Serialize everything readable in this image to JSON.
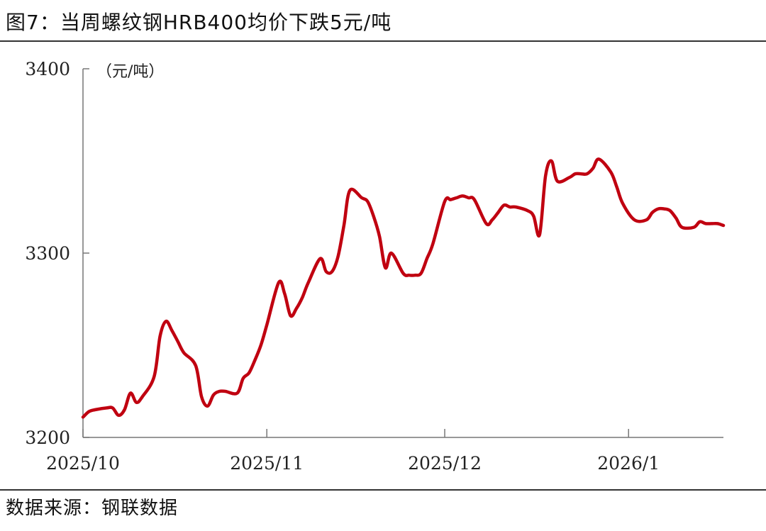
{
  "title": "图7：当周螺纹钢HRB400均价下跌5元/吨",
  "source": "数据来源：钢联数据",
  "chart_data": {
    "type": "line",
    "title": "图7：当周螺纹钢HRB400均价下跌5元/吨",
    "xlabel": "",
    "ylabel": "（元/吨）",
    "unit": "（元/吨）",
    "ylim": [
      3200,
      3400
    ],
    "yticks": [
      "3200",
      "3300",
      "3400"
    ],
    "xticks": [
      "2025/10",
      "2025/11",
      "2025/12",
      "2026/1"
    ],
    "xlim": [
      "2025-10-01",
      "2026-01-17"
    ],
    "grid": false,
    "color": "#c00010",
    "series": [
      {
        "name": "",
        "x": [
          "2025-10-01",
          "2025-10-02",
          "2025-10-03",
          "2025-10-05",
          "2025-10-06",
          "2025-10-07",
          "2025-10-08",
          "2025-10-09",
          "2025-10-10",
          "2025-10-11",
          "2025-10-13",
          "2025-10-14",
          "2025-10-15",
          "2025-10-16",
          "2025-10-17",
          "2025-10-18",
          "2025-10-20",
          "2025-10-21",
          "2025-10-22",
          "2025-10-23",
          "2025-10-24",
          "2025-10-25",
          "2025-10-27",
          "2025-10-28",
          "2025-10-29",
          "2025-10-30",
          "2025-10-31",
          "2025-11-01",
          "2025-11-03",
          "2025-11-04",
          "2025-11-05",
          "2025-11-06",
          "2025-11-07",
          "2025-11-08",
          "2025-11-10",
          "2025-11-11",
          "2025-11-12",
          "2025-11-13",
          "2025-11-14",
          "2025-11-15",
          "2025-11-17",
          "2025-11-18",
          "2025-11-19",
          "2025-11-20",
          "2025-11-21",
          "2025-11-22",
          "2025-11-24",
          "2025-11-25",
          "2025-11-26",
          "2025-11-27",
          "2025-11-28",
          "2025-11-29",
          "2025-12-01",
          "2025-12-02",
          "2025-12-03",
          "2025-12-04",
          "2025-12-05",
          "2025-12-06",
          "2025-12-08",
          "2025-12-09",
          "2025-12-10",
          "2025-12-11",
          "2025-12-12",
          "2025-12-13",
          "2025-12-15",
          "2025-12-16",
          "2025-12-17",
          "2025-12-18",
          "2025-12-19",
          "2025-12-20",
          "2025-12-22",
          "2025-12-23",
          "2025-12-24",
          "2025-12-25",
          "2025-12-26",
          "2025-12-27",
          "2025-12-29",
          "2025-12-30",
          "2025-12-31",
          "2026-01-02",
          "2026-01-04",
          "2026-01-05",
          "2026-01-06",
          "2026-01-07",
          "2026-01-08",
          "2026-01-09",
          "2026-01-10",
          "2026-01-12",
          "2026-01-13",
          "2026-01-14",
          "2026-01-15",
          "2026-01-16",
          "2026-01-17"
        ],
        "values": [
          3211,
          3214,
          3215,
          3216,
          3216,
          3212,
          3215,
          3224,
          3219,
          3222,
          3233,
          3255,
          3263,
          3258,
          3252,
          3246,
          3239,
          3222,
          3217,
          3223,
          3225,
          3225,
          3224,
          3232,
          3235,
          3242,
          3250,
          3261,
          3284,
          3278,
          3266,
          3270,
          3276,
          3284,
          3297,
          3290,
          3290,
          3298,
          3315,
          3334,
          3330,
          3328,
          3320,
          3309,
          3292,
          3300,
          3289,
          3288,
          3288,
          3289,
          3297,
          3305,
          3328,
          3329,
          3330,
          3331,
          3330,
          3329,
          3316,
          3318,
          3322,
          3326,
          3325,
          3325,
          3323,
          3320,
          3310,
          3342,
          3350,
          3339,
          3341,
          3343,
          3343,
          3343,
          3346,
          3351,
          3344,
          3336,
          3327,
          3318,
          3318,
          3322,
          3324,
          3324,
          3323,
          3319,
          3314,
          3314,
          3317,
          3316,
          3316,
          3316,
          3315
        ]
      }
    ]
  }
}
